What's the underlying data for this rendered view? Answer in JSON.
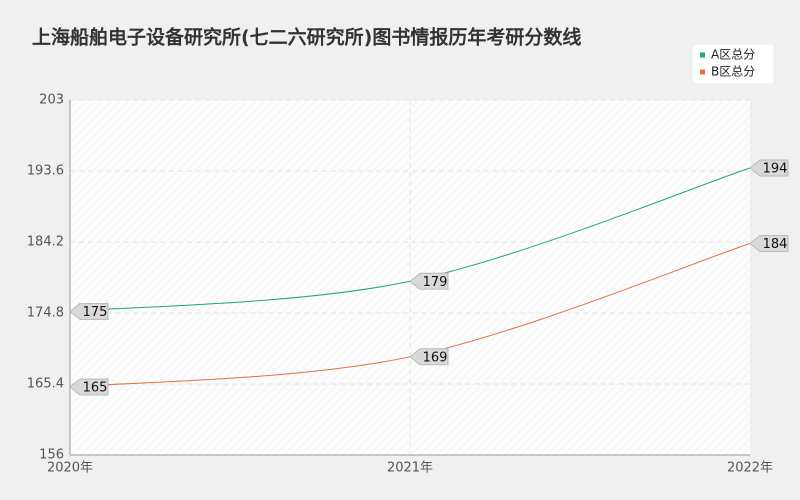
{
  "chart_data": {
    "type": "line",
    "title": "上海船舶电子设备研究所(七二六研究所)图书情报历年考研分数线",
    "categories": [
      "2020年",
      "2021年",
      "2022年"
    ],
    "series": [
      {
        "name": "A区总分",
        "color": "#1fa67a",
        "values": [
          175,
          179,
          194
        ]
      },
      {
        "name": "B区总分",
        "color": "#e0703f",
        "values": [
          165,
          169,
          184
        ]
      }
    ],
    "ylim": [
      156,
      203
    ],
    "yticks": [
      156,
      165.4,
      174.8,
      184.2,
      193.6,
      203
    ],
    "grid": true,
    "legend": "top-right"
  }
}
